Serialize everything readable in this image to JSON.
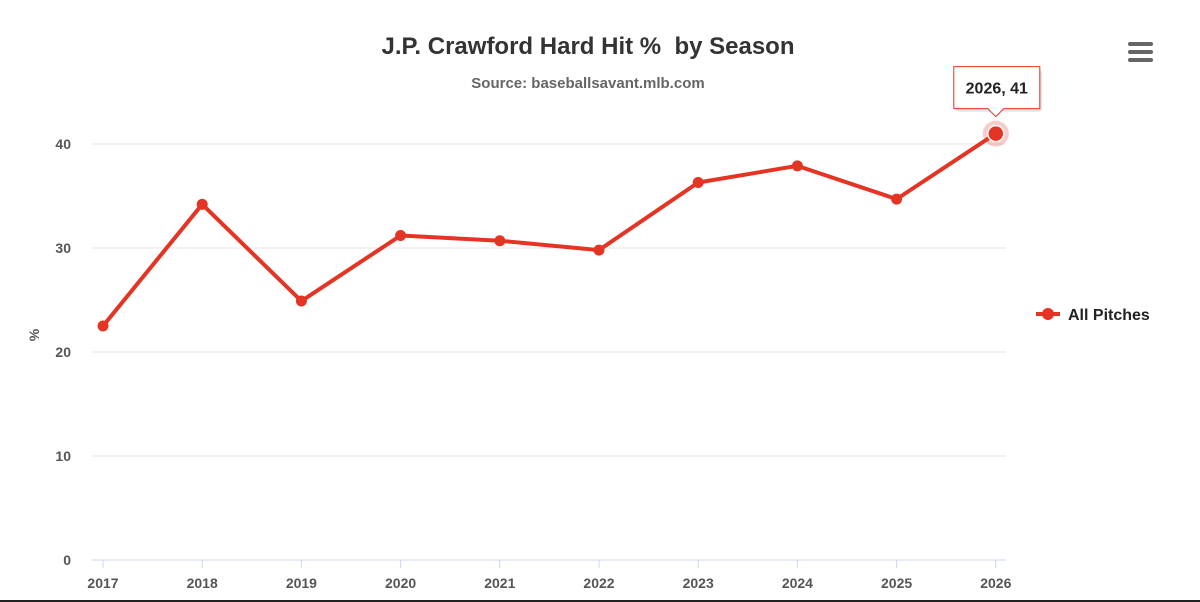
{
  "chart_data": {
    "type": "line",
    "title": "J.P. Crawford Hard Hit %  by Season",
    "subtitle": "Source: baseballsavant.mlb.com",
    "ylabel": "%",
    "xlabel": "",
    "categories": [
      "2017",
      "2018",
      "2019",
      "2020",
      "2021",
      "2022",
      "2023",
      "2024",
      "2025",
      "2026"
    ],
    "series": [
      {
        "name": "All Pitches",
        "color": "#e33424",
        "values": [
          22.5,
          34.2,
          24.9,
          31.2,
          30.7,
          29.8,
          36.3,
          37.9,
          34.7,
          41
        ]
      }
    ],
    "ylim": [
      0,
      45
    ],
    "yticks": [
      0,
      10,
      20,
      30,
      40
    ],
    "grid": true,
    "legend": "right",
    "tooltip": {
      "text": "2026, 41",
      "index": 9
    }
  },
  "menu": {
    "icon": "hamburger-menu-icon"
  }
}
